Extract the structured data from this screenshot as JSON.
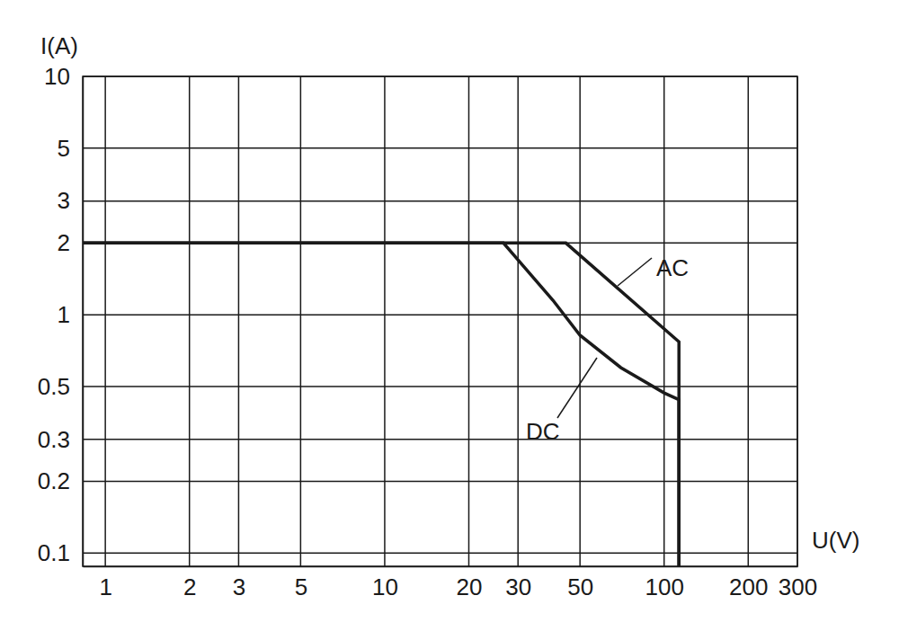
{
  "chart_data": {
    "type": "line",
    "x_label": "U(V)",
    "y_label": "I(A)",
    "log": true,
    "grid": true,
    "xlim": [
      0.83,
      300
    ],
    "ylim": [
      0.088,
      10
    ],
    "xticks": [
      1,
      2,
      3,
      5,
      10,
      20,
      30,
      50,
      100,
      200,
      300
    ],
    "yticks": [
      0.1,
      0.2,
      0.3,
      0.5,
      1,
      2,
      3,
      5,
      10
    ],
    "series": [
      {
        "name": "AC",
        "color": "#1a1a1a",
        "x": [
          0.83,
          44.5,
          113,
          113
        ],
        "values": [
          2,
          2,
          0.77,
          0.088
        ]
      },
      {
        "name": "DC",
        "color": "#1a1a1a",
        "x": [
          0.83,
          26.6,
          30,
          40,
          50,
          70,
          100,
          113,
          113
        ],
        "values": [
          2,
          2,
          1.7,
          1.15,
          0.82,
          0.6,
          0.47,
          0.44,
          0.088
        ]
      }
    ]
  }
}
